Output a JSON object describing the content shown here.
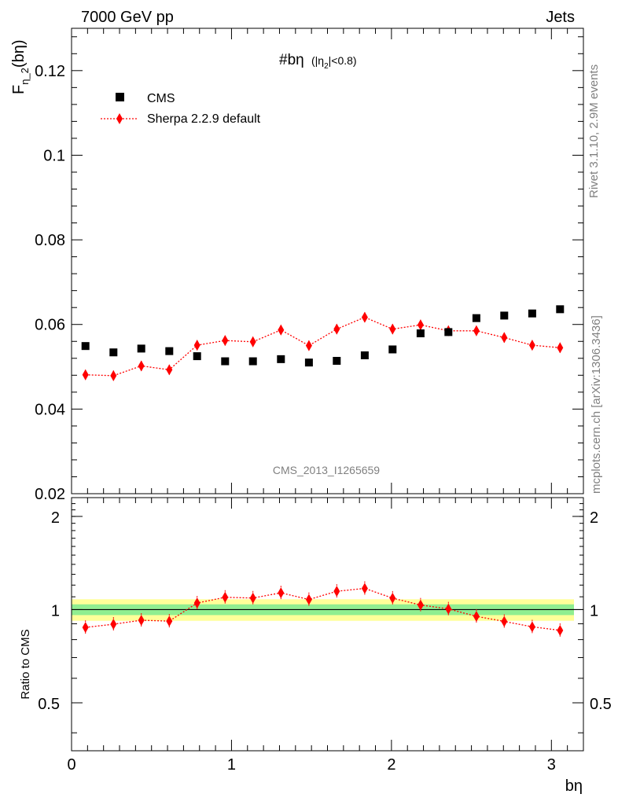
{
  "header": {
    "left": "7000 GeV pp",
    "right": "Jets"
  },
  "side_labels": {
    "rivet": "Rivet 3.1.10,  2.9M events",
    "mcplots": "mcplots.cern.ch [arXiv:1306.3436]"
  },
  "watermark": "CMS_2013_I1265659",
  "chart_data": [
    {
      "type": "scatter",
      "title": "#bη",
      "title_suffix": "(|η",
      "title_sub": "2",
      "title_tail": "|<0.8)",
      "ylabel_main": "F",
      "ylabel_sub": "η_2",
      "ylabel_tail": "(bη)",
      "xlim": [
        0,
        3.2
      ],
      "ylim": [
        0.02,
        0.13
      ],
      "yticks": [
        0.02,
        0.04,
        0.06,
        0.08,
        0.1,
        0.12
      ],
      "ytick_labels": [
        "0.02",
        "0.04",
        "0.06",
        "0.08",
        "0.1",
        "0.12"
      ],
      "legend_position": "top-left",
      "legend": [
        "CMS",
        "Sherpa 2.2.9 default"
      ],
      "x": [
        0.087,
        0.262,
        0.436,
        0.611,
        0.785,
        0.96,
        1.134,
        1.309,
        1.484,
        1.658,
        1.833,
        2.007,
        2.182,
        2.356,
        2.531,
        2.705,
        2.88,
        3.054
      ],
      "series": [
        {
          "name": "CMS",
          "color": "#000000",
          "marker": "square",
          "values": [
            0.0549,
            0.0534,
            0.0543,
            0.0537,
            0.0525,
            0.0513,
            0.0513,
            0.0518,
            0.051,
            0.0514,
            0.0527,
            0.0541,
            0.0579,
            0.0582,
            0.0615,
            0.0621,
            0.0626,
            0.0636
          ]
        },
        {
          "name": "Sherpa 2.2.9 default",
          "color": "#ff0000",
          "marker": "diamond",
          "values": [
            0.0481,
            0.0479,
            0.0502,
            0.0493,
            0.0551,
            0.0562,
            0.0559,
            0.0587,
            0.055,
            0.0589,
            0.0617,
            0.0589,
            0.0599,
            0.0585,
            0.0585,
            0.0569,
            0.0551,
            0.0545
          ],
          "errors": [
            0.0012,
            0.0012,
            0.0012,
            0.0012,
            0.0012,
            0.0012,
            0.0012,
            0.0012,
            0.0012,
            0.0012,
            0.0012,
            0.0012,
            0.0012,
            0.0012,
            0.0012,
            0.0012,
            0.0012,
            0.0012
          ]
        }
      ]
    },
    {
      "type": "line",
      "ylabel": "Ratio to CMS",
      "xlabel": "bη",
      "xlim": [
        0,
        3.2
      ],
      "ylim": [
        0.35,
        2.3
      ],
      "yticks": [
        0.5,
        1,
        2
      ],
      "ytick_labels": [
        "0.5",
        "1",
        "2"
      ],
      "xticks": [
        0,
        1,
        2,
        3
      ],
      "xtick_labels": [
        "0",
        "1",
        "2",
        "3"
      ],
      "reference": 1,
      "band_colors": {
        "inner": "#90ee90",
        "outer": "#ffff99"
      },
      "band_inner": [
        0.96,
        1.04
      ],
      "band_outer": [
        0.92,
        1.08
      ],
      "x": [
        0.087,
        0.262,
        0.436,
        0.611,
        0.785,
        0.96,
        1.134,
        1.309,
        1.484,
        1.658,
        1.833,
        2.007,
        2.182,
        2.356,
        2.531,
        2.705,
        2.88,
        3.054
      ],
      "series": [
        {
          "name": "Sherpa 2.2.9 default",
          "color": "#ff0000",
          "values": [
            0.876,
            0.897,
            0.924,
            0.918,
            1.05,
            1.096,
            1.09,
            1.133,
            1.078,
            1.146,
            1.171,
            1.089,
            1.035,
            1.005,
            0.951,
            0.916,
            0.88,
            0.857
          ]
        }
      ]
    }
  ]
}
